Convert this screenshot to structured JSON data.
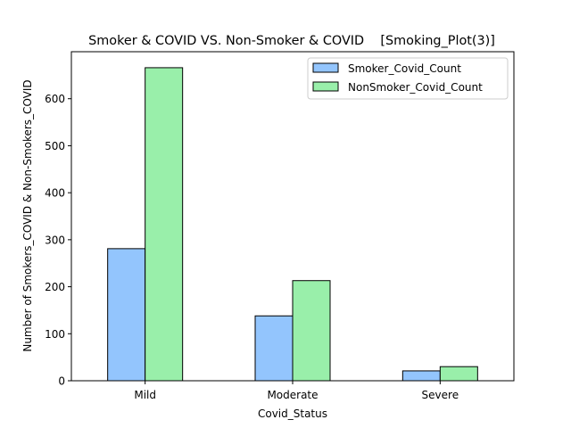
{
  "chart_data": {
    "type": "bar",
    "title": "Smoker & COVID VS. Non-Smoker & COVID    [Smoking_Plot(3)]",
    "xlabel": "Covid_Status",
    "ylabel": "Number of Smokers_COVID & Non-Smokers_COVID",
    "categories": [
      "Mild",
      "Moderate",
      "Severe"
    ],
    "series": [
      {
        "name": "Smoker_Covid_Count",
        "values": [
          281,
          138,
          21
        ],
        "color": "#93c5fd"
      },
      {
        "name": "NonSmoker_Covid_Count",
        "values": [
          666,
          213,
          30
        ],
        "color": "#99efaa"
      }
    ],
    "ylim": [
      0,
      700
    ],
    "yticks": [
      0,
      100,
      200,
      300,
      400,
      500,
      600
    ],
    "grid": false,
    "legend": "top-right"
  }
}
